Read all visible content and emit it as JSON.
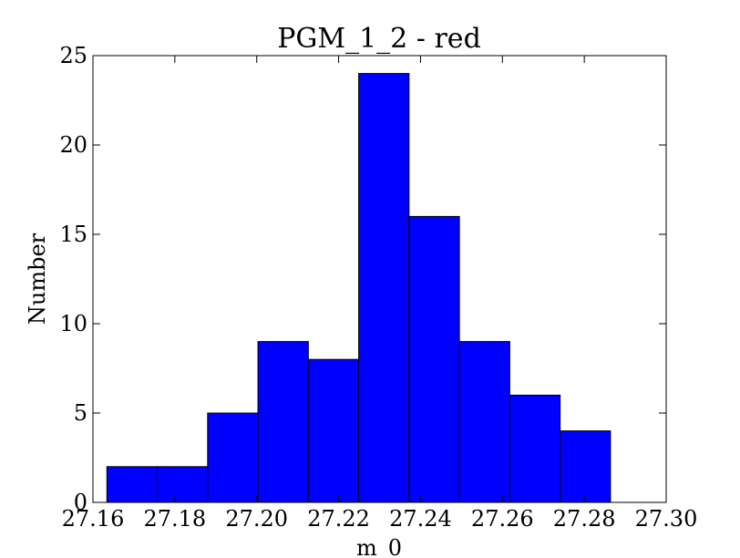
{
  "chart_data": {
    "type": "histogram",
    "title": "PGM_1_2 - red",
    "xlabel": "m_0",
    "ylabel": "Number",
    "bins": [
      27.1634,
      27.1757,
      27.188,
      27.2003,
      27.2126,
      27.2249,
      27.2372,
      27.2495,
      27.2618,
      27.2741,
      27.2864
    ],
    "values": [
      2,
      2,
      5,
      9,
      8,
      24,
      16,
      9,
      6,
      4
    ],
    "color": "#0000ff",
    "xlim": [
      27.16,
      27.3
    ],
    "xticks": [
      27.16,
      27.18,
      {
        "value": 27.2,
        "label": "27.20"
      },
      27.22,
      27.24,
      27.26,
      27.28,
      {
        "value": 27.3,
        "label": "27.30"
      }
    ],
    "ylim": [
      0,
      25
    ],
    "yticks": [
      0,
      5,
      10,
      15,
      20,
      25
    ]
  }
}
